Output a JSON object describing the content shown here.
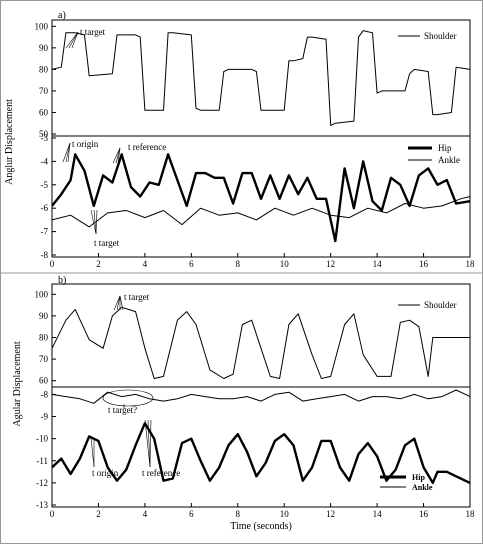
{
  "panels": {
    "a": {
      "label": "a)",
      "ylabel": "Anglur Displacement",
      "top_yticks": [
        "100",
        "90",
        "80",
        "70",
        "60",
        "50"
      ],
      "bottom_yticks": [
        "-3",
        "-4",
        "-5",
        "-6",
        "-7",
        "-8"
      ],
      "xticks": [
        "0",
        "2",
        "4",
        "6",
        "8",
        "10",
        "12",
        "14",
        "16",
        "18"
      ],
      "legend_top": [
        "Shoulder"
      ],
      "legend_bottom": [
        "Hip",
        "Ankle"
      ],
      "annotations": [
        "t target",
        "t origin",
        "t reference",
        "t target"
      ]
    },
    "b": {
      "label": "b)",
      "ylabel": "Agular Displacement",
      "top_yticks": [
        "100",
        "90",
        "80",
        "70",
        "60"
      ],
      "bottom_yticks": [
        "-8",
        "-9",
        "-10",
        "-11",
        "-12",
        "-13"
      ],
      "xticks": [
        "0",
        "2",
        "4",
        "6",
        "8",
        "10",
        "12",
        "14",
        "16",
        "18"
      ],
      "legend_top": [
        "Shoulder"
      ],
      "legend_bottom": [
        "Hip",
        "Ankle"
      ],
      "annotations": [
        "t target",
        "t target?",
        "t origin",
        "t reference"
      ]
    }
  },
  "xlabel": "Time (seconds)",
  "chart_data": [
    {
      "panel": "a-top",
      "type": "line",
      "ylim": [
        50,
        102
      ],
      "xlim": [
        0,
        18
      ],
      "series": [
        {
          "name": "Shoulder",
          "x": [
            0,
            0.4,
            0.6,
            1.0,
            1.4,
            1.6,
            2.6,
            2.8,
            3.0,
            3.6,
            3.8,
            4.0,
            4.8,
            5.0,
            5.2,
            6.0,
            6.2,
            6.4,
            7.2,
            7.4,
            7.6,
            8.6,
            8.8,
            9.0,
            10.0,
            10.2,
            10.4,
            10.8,
            11.0,
            11.2,
            11.8,
            12.0,
            12.2,
            13.0,
            13.2,
            13.4,
            13.8,
            14.0,
            14.2,
            15.2,
            15.4,
            15.6,
            16.2,
            16.4,
            16.6,
            17.2,
            17.4,
            18.0
          ],
          "y": [
            80,
            81,
            97,
            97,
            96,
            77,
            78,
            96,
            96,
            96,
            95,
            61,
            61,
            97,
            97,
            96,
            62,
            61,
            61,
            79,
            80,
            80,
            79,
            61,
            61,
            84,
            84,
            85,
            95,
            95,
            94,
            54,
            55,
            56,
            95,
            98,
            97,
            69,
            70,
            70,
            78,
            80,
            79,
            59,
            59,
            60,
            81,
            80
          ]
        }
      ]
    },
    {
      "panel": "a-bottom",
      "type": "line",
      "ylim": [
        -8,
        -3
      ],
      "xlim": [
        0,
        18
      ],
      "series": [
        {
          "name": "Hip",
          "x": [
            0,
            0.4,
            0.8,
            1.0,
            1.4,
            1.8,
            2.2,
            2.6,
            3.0,
            3.4,
            3.8,
            4.2,
            4.6,
            5.0,
            5.4,
            5.8,
            6.2,
            6.6,
            7.0,
            7.4,
            7.8,
            8.2,
            8.6,
            9.0,
            9.4,
            9.8,
            10.2,
            10.6,
            11.0,
            11.4,
            11.8,
            12.2,
            12.6,
            13.0,
            13.4,
            13.8,
            14.2,
            14.6,
            15.0,
            15.4,
            15.8,
            16.2,
            16.6,
            17.0,
            17.4,
            18.0
          ],
          "y": [
            -5.9,
            -5.4,
            -4.8,
            -3.7,
            -4.4,
            -5.9,
            -4.6,
            -4.9,
            -3.7,
            -5.1,
            -5.5,
            -4.9,
            -5.0,
            -3.7,
            -4.8,
            -5.9,
            -4.5,
            -4.5,
            -4.7,
            -4.7,
            -5.8,
            -4.5,
            -4.5,
            -5.6,
            -4.6,
            -5.6,
            -4.6,
            -5.4,
            -4.7,
            -5.6,
            -5.6,
            -7.4,
            -4.3,
            -6.0,
            -4.0,
            -5.7,
            -6.1,
            -4.7,
            -5.0,
            -5.9,
            -4.6,
            -4.3,
            -5.0,
            -4.8,
            -5.8,
            -5.7
          ]
        },
        {
          "name": "Ankle",
          "x": [
            0,
            0.8,
            1.6,
            2.4,
            3.2,
            4.0,
            4.8,
            5.6,
            6.4,
            7.2,
            8.0,
            8.8,
            9.6,
            10.4,
            11.2,
            12.0,
            12.8,
            13.6,
            14.4,
            15.2,
            16.0,
            16.8,
            17.6,
            18.0
          ],
          "y": [
            -6.5,
            -6.3,
            -6.8,
            -6.2,
            -6.1,
            -6.4,
            -6.1,
            -6.7,
            -6.0,
            -6.3,
            -6.2,
            -6.5,
            -6.0,
            -6.3,
            -6.0,
            -6.3,
            -6.4,
            -6.0,
            -6.2,
            -5.8,
            -6.0,
            -5.9,
            -5.6,
            -5.5
          ]
        }
      ]
    },
    {
      "panel": "b-top",
      "type": "line",
      "ylim": [
        58,
        102
      ],
      "xlim": [
        0,
        18
      ],
      "series": [
        {
          "name": "Shoulder",
          "x": [
            0,
            0.6,
            1.0,
            1.6,
            2.2,
            2.6,
            3.0,
            3.6,
            4.0,
            4.4,
            4.8,
            5.4,
            5.8,
            6.2,
            6.8,
            7.4,
            7.8,
            8.2,
            8.6,
            9.4,
            9.8,
            10.2,
            10.6,
            11.2,
            11.6,
            12.0,
            12.6,
            13.0,
            13.4,
            14.0,
            14.6,
            15.0,
            15.4,
            15.8,
            16.2,
            16.4,
            17.0,
            18.0
          ],
          "y": [
            75,
            88,
            93,
            79,
            75,
            90,
            94,
            92,
            75,
            61,
            62,
            88,
            92,
            86,
            65,
            61,
            63,
            86,
            88,
            62,
            61,
            86,
            91,
            72,
            61,
            62,
            86,
            91,
            72,
            62,
            62,
            87,
            88,
            85,
            62,
            80,
            80,
            80
          ]
        }
      ]
    },
    {
      "panel": "b-bottom",
      "type": "line",
      "ylim": [
        -13,
        -7.8
      ],
      "xlim": [
        0,
        18
      ],
      "series": [
        {
          "name": "Hip",
          "x": [
            0,
            0.4,
            0.8,
            1.2,
            1.6,
            2.0,
            2.4,
            2.8,
            3.2,
            3.6,
            4.0,
            4.4,
            4.8,
            5.2,
            5.6,
            6.0,
            6.4,
            6.8,
            7.2,
            7.6,
            8.0,
            8.4,
            8.8,
            9.2,
            9.6,
            10.0,
            10.4,
            10.8,
            11.2,
            11.6,
            12.0,
            12.4,
            12.8,
            13.2,
            13.6,
            14.0,
            14.4,
            14.8,
            15.2,
            15.6,
            16.0,
            16.4,
            16.6,
            17.0,
            17.4,
            18.0
          ],
          "y": [
            -11.3,
            -10.9,
            -11.6,
            -10.9,
            -9.9,
            -10.1,
            -11.3,
            -11.9,
            -11.4,
            -10.3,
            -9.3,
            -10.0,
            -11.9,
            -11.8,
            -10.2,
            -10.0,
            -11.0,
            -11.9,
            -11.3,
            -10.3,
            -9.8,
            -10.6,
            -11.7,
            -11.1,
            -10.1,
            -9.8,
            -10.3,
            -11.9,
            -11.3,
            -10.1,
            -10.1,
            -11.3,
            -11.9,
            -10.7,
            -10.2,
            -10.8,
            -11.9,
            -11.4,
            -10.3,
            -10.0,
            -11.3,
            -12.0,
            -11.5,
            -11.5,
            -11.7,
            -12.0
          ]
        },
        {
          "name": "Ankle",
          "x": [
            0,
            0.6,
            1.2,
            1.8,
            2.4,
            3.0,
            3.6,
            4.2,
            4.8,
            5.4,
            6.0,
            6.6,
            7.2,
            7.8,
            8.4,
            9.0,
            9.6,
            10.2,
            10.8,
            11.4,
            12.0,
            12.6,
            13.2,
            13.8,
            14.4,
            15.0,
            15.6,
            16.2,
            16.8,
            17.4,
            18.0
          ],
          "y": [
            -8.0,
            -8.1,
            -8.2,
            -8.4,
            -7.9,
            -8.1,
            -8.0,
            -8.2,
            -8.3,
            -8.2,
            -8.0,
            -8.1,
            -8.2,
            -8.2,
            -8.1,
            -8.3,
            -8.0,
            -7.9,
            -8.3,
            -8.2,
            -8.1,
            -8.0,
            -8.3,
            -8.1,
            -8.1,
            -8.2,
            -8.0,
            -8.2,
            -8.1,
            -7.8,
            -8.1
          ]
        }
      ]
    }
  ]
}
